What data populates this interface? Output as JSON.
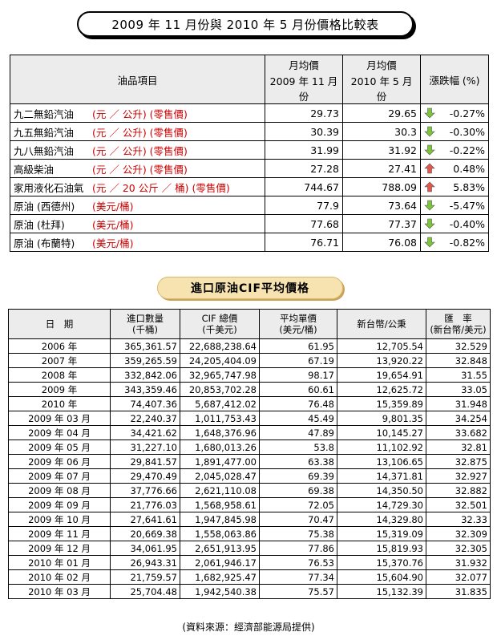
{
  "title": "2009 年 11 月份與 2010 年 5 月份價格比較表",
  "table1": {
    "headers": {
      "item": "油品項目",
      "col1_top": "月均價",
      "col1_bottom": "2009 年 11 月份",
      "col2_top": "月均價",
      "col2_bottom": "2010 年 5 月份",
      "change": "漲跌幅 (%)"
    },
    "rows": [
      {
        "name": "九二無鉛汽油",
        "unit": "(元 ／ 公升) (零售價)",
        "v1": "29.73",
        "v2": "29.65",
        "dir": "down",
        "pct": "-0.27%"
      },
      {
        "name": "九五無鉛汽油",
        "unit": "(元 ／ 公升) (零售價)",
        "v1": "30.39",
        "v2": "30.3",
        "dir": "down",
        "pct": "-0.30%"
      },
      {
        "name": "九八無鉛汽油",
        "unit": "(元 ／ 公升) (零售價)",
        "v1": "31.99",
        "v2": "31.92",
        "dir": "down",
        "pct": "-0.22%"
      },
      {
        "name": "高級柴油",
        "unit": "(元 ／ 公升) (零售價)",
        "v1": "27.28",
        "v2": "27.41",
        "dir": "up",
        "pct": "0.48%"
      },
      {
        "name": "家用液化石油氣",
        "unit": "(元 ／ 20 公斤 ／ 桶) (零售價)",
        "v1": "744.67",
        "v2": "788.09",
        "dir": "up",
        "pct": "5.83%"
      },
      {
        "name": "原油 (西德州)",
        "unit": "(美元/桶)",
        "v1": "77.9",
        "v2": "73.64",
        "dir": "down",
        "pct": "-5.47%"
      },
      {
        "name": "原油 (杜拜)",
        "unit": "(美元/桶)",
        "v1": "77.68",
        "v2": "77.37",
        "dir": "down",
        "pct": "-0.40%"
      },
      {
        "name": "原油 (布蘭特)",
        "unit": "(美元/桶)",
        "v1": "76.71",
        "v2": "76.08",
        "dir": "down",
        "pct": "-0.82%"
      }
    ]
  },
  "section_title": "進口原油CIF平均價格",
  "table2": {
    "headers": {
      "date": "日　期",
      "qty_top": "進口數量",
      "qty_bottom": "(千桶)",
      "cif_top": "CIF 總價",
      "cif_bottom": "(千美元)",
      "avg_top": "平均單價",
      "avg_bottom": "(美元/桶)",
      "twd": "新台幣/公秉",
      "rate_top": "匯　率",
      "rate_bottom": "(新台幣/美元)"
    },
    "rows": [
      {
        "date": "2006 年",
        "qty": "365,361.57",
        "cif": "22,688,238.64",
        "avg": "61.95",
        "twd": "12,705.54",
        "rate": "32.529"
      },
      {
        "date": "2007 年",
        "qty": "359,265.59",
        "cif": "24,205,404.09",
        "avg": "67.19",
        "twd": "13,920.22",
        "rate": "32.848"
      },
      {
        "date": "2008 年",
        "qty": "332,842.06",
        "cif": "32,965,747.98",
        "avg": "98.17",
        "twd": "19,654.91",
        "rate": "31.55"
      },
      {
        "date": "2009 年",
        "qty": "343,359.46",
        "cif": "20,853,702.28",
        "avg": "60.61",
        "twd": "12,625.72",
        "rate": "33.05"
      },
      {
        "date": "2010 年",
        "qty": "74,407.36",
        "cif": "5,687,412.02",
        "avg": "76.48",
        "twd": "15,359.89",
        "rate": "31.948"
      },
      {
        "date": "2009 年 03 月",
        "qty": "22,240.37",
        "cif": "1,011,753.43",
        "avg": "45.49",
        "twd": "9,801.35",
        "rate": "34.254"
      },
      {
        "date": "2009 年 04 月",
        "qty": "34,421.62",
        "cif": "1,648,376.96",
        "avg": "47.89",
        "twd": "10,145.27",
        "rate": "33.682"
      },
      {
        "date": "2009 年 05 月",
        "qty": "31,227.10",
        "cif": "1,680,013.26",
        "avg": "53.8",
        "twd": "11,102.92",
        "rate": "32.81"
      },
      {
        "date": "2009 年 06 月",
        "qty": "29,841.57",
        "cif": "1,891,477.00",
        "avg": "63.38",
        "twd": "13,106.65",
        "rate": "32.875"
      },
      {
        "date": "2009 年 07 月",
        "qty": "29,470.49",
        "cif": "2,045,028.47",
        "avg": "69.39",
        "twd": "14,371.81",
        "rate": "32.927"
      },
      {
        "date": "2009 年 08 月",
        "qty": "37,776.66",
        "cif": "2,621,110.08",
        "avg": "69.38",
        "twd": "14,350.50",
        "rate": "32.882"
      },
      {
        "date": "2009 年 09 月",
        "qty": "21,776.03",
        "cif": "1,568,958.61",
        "avg": "72.05",
        "twd": "14,729.30",
        "rate": "32.501"
      },
      {
        "date": "2009 年 10 月",
        "qty": "27,641.61",
        "cif": "1,947,845.98",
        "avg": "70.47",
        "twd": "14,329.80",
        "rate": "32.33"
      },
      {
        "date": "2009 年 11 月",
        "qty": "20,669.38",
        "cif": "1,558,063.86",
        "avg": "75.38",
        "twd": "15,319.09",
        "rate": "32.309"
      },
      {
        "date": "2009 年 12 月",
        "qty": "34,061.95",
        "cif": "2,651,913.95",
        "avg": "77.86",
        "twd": "15,819.93",
        "rate": "32.305"
      },
      {
        "date": "2010 年 01 月",
        "qty": "26,943.31",
        "cif": "2,061,946.17",
        "avg": "76.53",
        "twd": "15,370.76",
        "rate": "31.932"
      },
      {
        "date": "2010 年 02 月",
        "qty": "21,759.57",
        "cif": "1,682,925.47",
        "avg": "77.34",
        "twd": "15,604.90",
        "rate": "32.077"
      },
      {
        "date": "2010 年 03 月",
        "qty": "25,704.48",
        "cif": "1,942,540.38",
        "avg": "75.57",
        "twd": "15,132.39",
        "rate": "31.835"
      }
    ]
  },
  "source": "(資料來源：經濟部能源局提供)",
  "colors": {
    "up_arrow": "#e2574c",
    "down_arrow": "#7ec43a",
    "unit_text": "#cc0000"
  }
}
